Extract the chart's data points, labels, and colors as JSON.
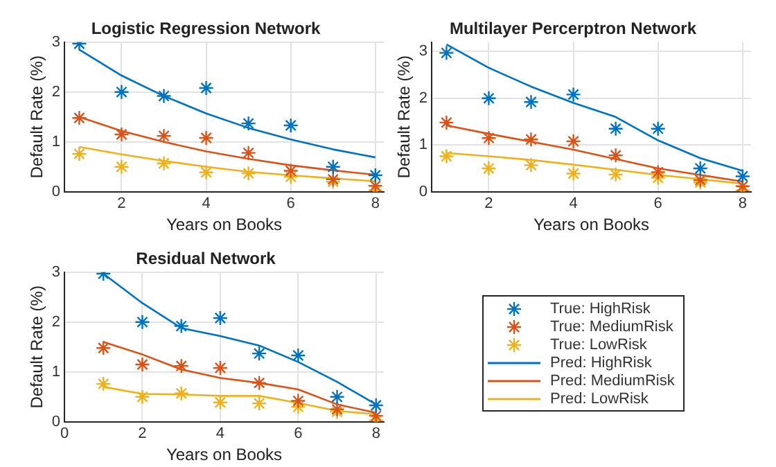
{
  "chart_data": [
    {
      "type": "line",
      "title": "Logistic Regression Network",
      "xlabel": "Years on Books",
      "ylabel": "Default Rate (%)",
      "x": [
        1,
        2,
        3,
        4,
        5,
        6,
        7,
        8
      ],
      "xlim": [
        0.65,
        8.2
      ],
      "xticks": [
        2,
        4,
        6,
        8
      ],
      "ylim": [
        0,
        3
      ],
      "yticks": [
        0,
        1,
        2,
        3
      ],
      "grid": true,
      "legend": false,
      "series": [
        {
          "type": "scatter",
          "marker": "cross",
          "color": "#0072bd",
          "values": [
            2.97,
            2.0,
            1.92,
            2.08,
            1.37,
            1.33,
            0.5,
            0.33
          ]
        },
        {
          "type": "scatter",
          "marker": "cross",
          "color": "#d95319",
          "values": [
            1.48,
            1.15,
            1.12,
            1.08,
            0.78,
            0.42,
            0.25,
            0.12
          ]
        },
        {
          "type": "scatter",
          "marker": "cross",
          "color": "#edb120",
          "values": [
            0.76,
            0.5,
            0.57,
            0.39,
            0.37,
            0.3,
            0.2,
            0.03
          ]
        },
        {
          "type": "line",
          "marker": "none",
          "color": "#0072bd",
          "values": [
            2.85,
            2.33,
            1.92,
            1.57,
            1.28,
            1.05,
            0.85,
            0.69
          ]
        },
        {
          "type": "line",
          "marker": "none",
          "color": "#d95319",
          "values": [
            1.5,
            1.22,
            1.0,
            0.81,
            0.66,
            0.53,
            0.43,
            0.34
          ]
        },
        {
          "type": "line",
          "marker": "none",
          "color": "#edb120",
          "values": [
            0.9,
            0.75,
            0.62,
            0.5,
            0.4,
            0.33,
            0.27,
            0.21
          ]
        }
      ]
    },
    {
      "type": "line",
      "title": "Multilayer Percerptron Network",
      "xlabel": "Years on Books",
      "ylabel": "Default Rate (%)",
      "x": [
        1,
        2,
        3,
        4,
        5,
        6,
        7,
        8
      ],
      "xlim": [
        0.65,
        8.2
      ],
      "xticks": [
        2,
        4,
        6,
        8
      ],
      "ylim": [
        0,
        3.2
      ],
      "yticks": [
        0,
        1,
        2,
        3
      ],
      "grid": true,
      "legend": false,
      "series": [
        {
          "type": "scatter",
          "marker": "cross",
          "color": "#0072bd",
          "values": [
            2.97,
            2.0,
            1.92,
            2.08,
            1.35,
            1.35,
            0.5,
            0.33
          ]
        },
        {
          "type": "scatter",
          "marker": "cross",
          "color": "#d95319",
          "values": [
            1.48,
            1.15,
            1.12,
            1.08,
            0.78,
            0.42,
            0.25,
            0.12
          ]
        },
        {
          "type": "scatter",
          "marker": "cross",
          "color": "#edb120",
          "values": [
            0.76,
            0.5,
            0.57,
            0.39,
            0.37,
            0.3,
            0.2,
            0.03
          ]
        },
        {
          "type": "line",
          "marker": "none",
          "color": "#0072bd",
          "values": [
            3.15,
            2.65,
            2.25,
            1.9,
            1.6,
            1.1,
            0.72,
            0.45
          ]
        },
        {
          "type": "line",
          "marker": "none",
          "color": "#d95319",
          "values": [
            1.42,
            1.24,
            1.07,
            0.9,
            0.7,
            0.5,
            0.36,
            0.22
          ]
        },
        {
          "type": "line",
          "marker": "none",
          "color": "#edb120",
          "values": [
            0.83,
            0.76,
            0.68,
            0.58,
            0.47,
            0.36,
            0.27,
            0.17
          ]
        }
      ]
    },
    {
      "type": "line",
      "title": "Residual Network",
      "xlabel": "Years on Books",
      "ylabel": "Default Rate (%)",
      "x": [
        1,
        2,
        3,
        4,
        5,
        6,
        7,
        8
      ],
      "xlim": [
        0,
        8.2
      ],
      "xticks": [
        0,
        2,
        4,
        6,
        8
      ],
      "ylim": [
        0,
        3
      ],
      "yticks": [
        0,
        1,
        2,
        3
      ],
      "grid": true,
      "legend": "right",
      "series": [
        {
          "name": "True: HighRisk",
          "type": "scatter",
          "marker": "cross",
          "color": "#0072bd",
          "values": [
            2.97,
            2.0,
            1.92,
            2.08,
            1.37,
            1.33,
            0.5,
            0.33
          ]
        },
        {
          "name": "True: MediumRisk",
          "type": "scatter",
          "marker": "cross",
          "color": "#d95319",
          "values": [
            1.48,
            1.15,
            1.12,
            1.08,
            0.78,
            0.42,
            0.25,
            0.12
          ]
        },
        {
          "name": "True: LowRisk",
          "type": "scatter",
          "marker": "cross",
          "color": "#edb120",
          "values": [
            0.76,
            0.5,
            0.57,
            0.39,
            0.37,
            0.3,
            0.2,
            0.03
          ]
        },
        {
          "name": "Pred: HighRisk",
          "type": "line",
          "marker": "none",
          "color": "#0072bd",
          "values": [
            2.97,
            2.38,
            1.88,
            1.72,
            1.53,
            1.2,
            0.8,
            0.35
          ]
        },
        {
          "name": "Pred: MediumRisk",
          "type": "line",
          "marker": "none",
          "color": "#d95319",
          "values": [
            1.6,
            1.35,
            1.05,
            0.88,
            0.78,
            0.65,
            0.35,
            0.18
          ]
        },
        {
          "name": "Pred: LowRisk",
          "type": "line",
          "marker": "none",
          "color": "#edb120",
          "values": [
            0.7,
            0.56,
            0.55,
            0.52,
            0.52,
            0.38,
            0.22,
            0.15
          ]
        }
      ]
    }
  ]
}
